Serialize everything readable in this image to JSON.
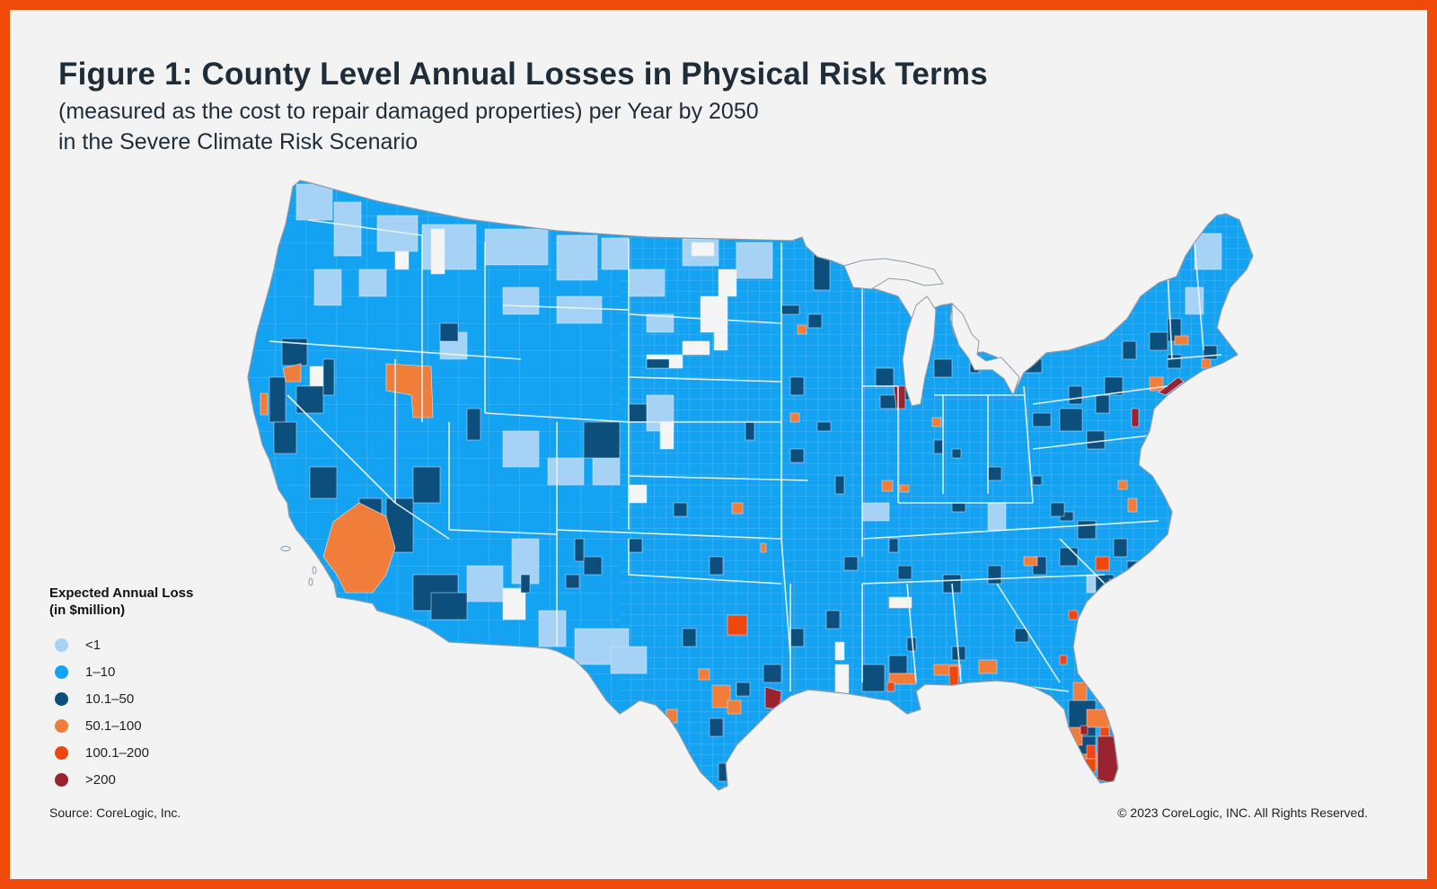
{
  "figure": {
    "title": "Figure 1: County Level Annual Losses in Physical Risk Terms",
    "subtitle_line1": "(measured as the cost to repair damaged properties) per Year by 2050",
    "subtitle_line2": "in the Severe Climate Risk Scenario"
  },
  "colors": {
    "frame_border": "#f04a0a",
    "background": "#f3f3f4",
    "lt1": "#a6d3f5",
    "c1_10": "#14a2f2",
    "c10_50": "#0d4f7c",
    "c50_100": "#f07d3a",
    "c100_200": "#f0460f",
    "gt200": "#9a2330",
    "nodata": "#f5f5f5"
  },
  "legend": {
    "title_line1": "Expected Annual Loss",
    "title_line2": "(in $million)",
    "items": [
      {
        "label": "<1",
        "color": "#a6d3f5"
      },
      {
        "label": "1–10",
        "color": "#14a2f2"
      },
      {
        "label": "10.1–50",
        "color": "#0d4f7c"
      },
      {
        "label": "50.1–100",
        "color": "#f07d3a"
      },
      {
        "label": "100.1–200",
        "color": "#f0460f"
      },
      {
        "label": ">200",
        "color": "#9a2330"
      }
    ]
  },
  "footer": {
    "source": "Source: CoreLogic, Inc.",
    "copyright": "© 2023 CoreLogic, INC. All Rights Reserved."
  }
}
